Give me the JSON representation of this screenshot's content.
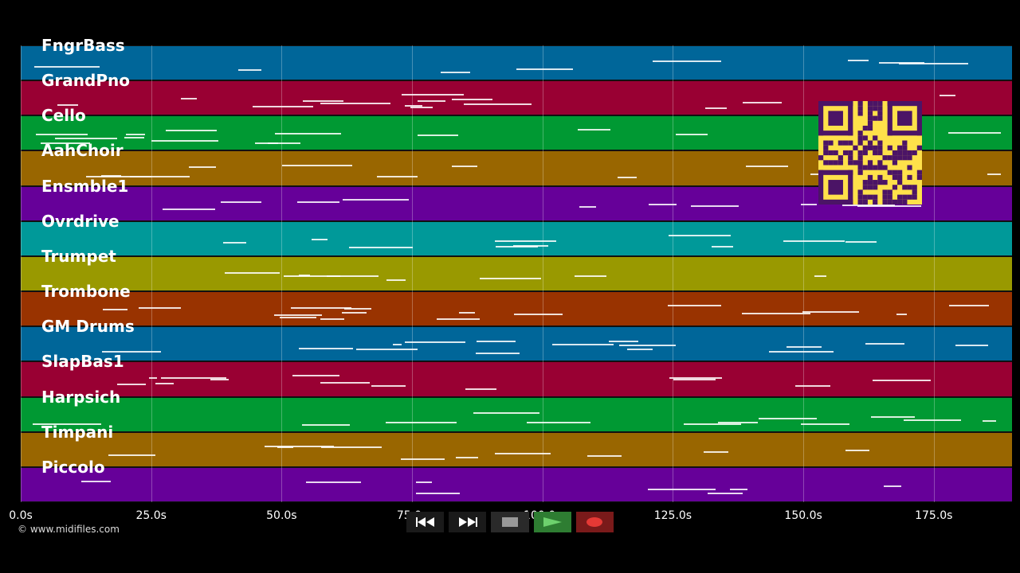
{
  "player": {
    "tracks": [
      {
        "name": "FngrBass",
        "color": "#006699"
      },
      {
        "name": "GrandPno",
        "color": "#990033"
      },
      {
        "name": "Cello",
        "color": "#009933"
      },
      {
        "name": "AahChoir",
        "color": "#996600"
      },
      {
        "name": "Ensmble1",
        "color": "#660099"
      },
      {
        "name": "Ovrdrive",
        "color": "#009999"
      },
      {
        "name": "Trumpet",
        "color": "#999900"
      },
      {
        "name": "Trombone",
        "color": "#993300"
      },
      {
        "name": "GM Drums",
        "color": "#006699"
      },
      {
        "name": "SlapBas1",
        "color": "#990033"
      },
      {
        "name": "Harpsich",
        "color": "#009933"
      },
      {
        "name": "Timpani",
        "color": "#996600"
      },
      {
        "name": "Piccolo",
        "color": "#660099"
      }
    ],
    "time_axis": {
      "ticks": [
        "0.0s",
        "25.0s",
        "50.0s",
        "75.0s",
        "100.0s",
        "125.0s",
        "150.0s",
        "175.0s"
      ],
      "tick_seconds": [
        0,
        25,
        50,
        75,
        100,
        125,
        150,
        175
      ],
      "max_seconds": 190
    },
    "copyright": "© www.midifiles.com",
    "transport": {
      "rewind": "rewind-icon",
      "fast_forward": "fast-forward-icon",
      "stop": "stop-icon",
      "play": "play-icon",
      "record": "record-icon"
    },
    "colors": {
      "background": "#000000",
      "qr_fill": "#ffe14a",
      "qr_dark": "#4b1466",
      "play_bg": "#2e7d32",
      "record_bg": "#7a1a1a"
    }
  }
}
